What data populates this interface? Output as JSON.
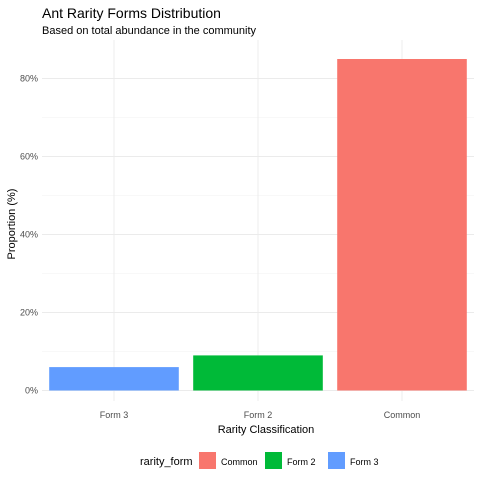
{
  "chart_data": {
    "type": "bar",
    "title": "Ant Rarity Forms Distribution",
    "subtitle": "Based on total abundance in the community",
    "xlabel": "Rarity Classification",
    "ylabel": "Proportion (%)",
    "categories": [
      "Form 3",
      "Form 2",
      "Common"
    ],
    "values": [
      6,
      9,
      85
    ],
    "colors": [
      "#619CFF",
      "#00BA38",
      "#F8766D"
    ],
    "ylim": [
      0,
      88
    ],
    "yticks": [
      0,
      20,
      40,
      60,
      80
    ],
    "ytick_labels": [
      "0%",
      "20%",
      "40%",
      "60%",
      "80%"
    ],
    "grid": true,
    "legend": {
      "title": "rarity_form",
      "position": "bottom",
      "entries": [
        {
          "label": "Common",
          "color": "#F8766D"
        },
        {
          "label": "Form 2",
          "color": "#00BA38"
        },
        {
          "label": "Form 3",
          "color": "#619CFF"
        }
      ]
    }
  }
}
